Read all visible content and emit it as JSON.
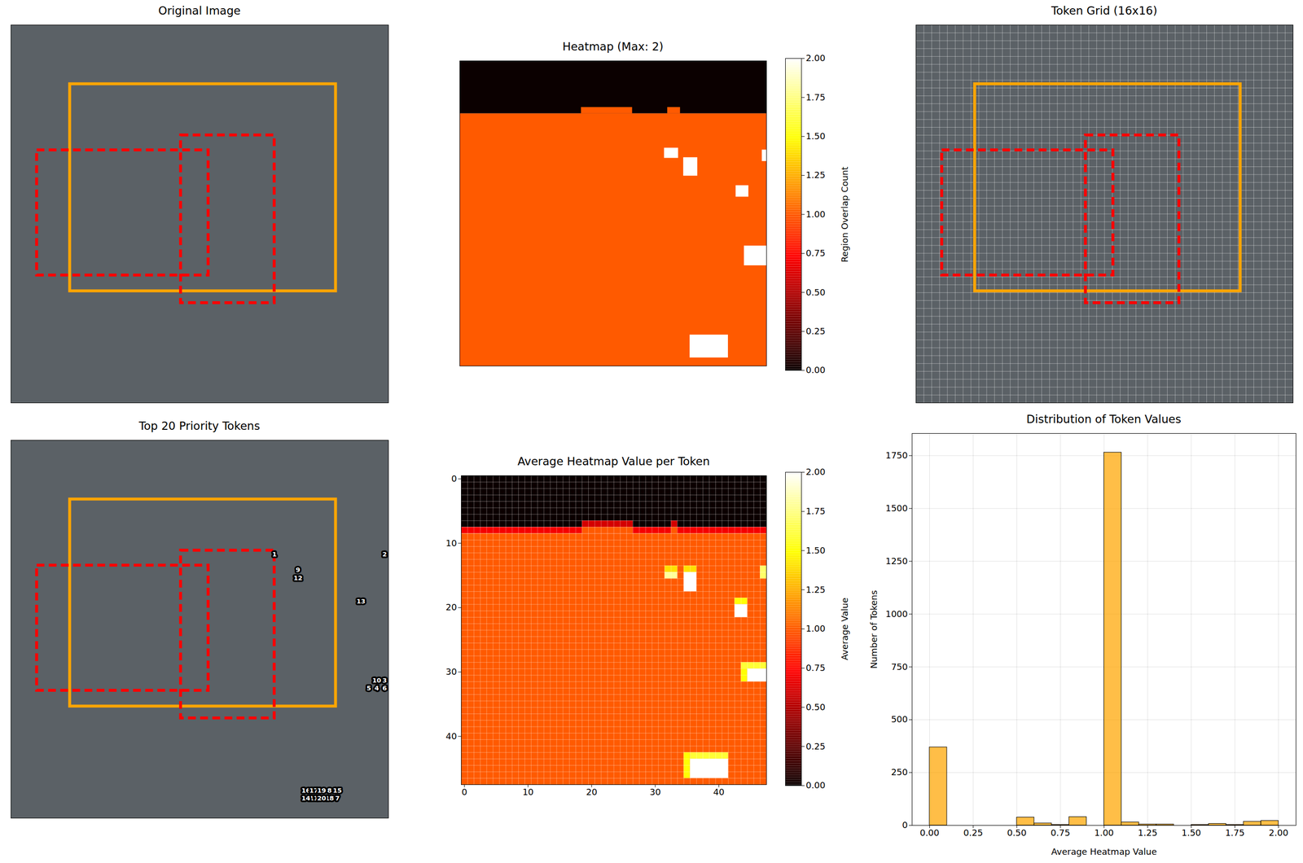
{
  "chart_data": [
    {
      "type": "image",
      "title": "Original Image",
      "tick_labels": false,
      "xlim": [
        0,
        48
      ],
      "ylim": [
        48,
        0
      ],
      "boxes": [
        {
          "x": [
            7.5,
            41.3
          ],
          "y": [
            7.5,
            33.8
          ],
          "color": "#ffa500",
          "line_style": "solid"
        },
        {
          "x": [
            3.3,
            25.1
          ],
          "y": [
            15.9,
            31.8
          ],
          "color": "#ff0000",
          "line_style": "dashed"
        },
        {
          "x": [
            21.6,
            33.5
          ],
          "y": [
            14.0,
            35.3
          ],
          "color": "#ff0000",
          "line_style": "dashed"
        }
      ]
    },
    {
      "type": "heatmap",
      "title": "Heatmap (Max: 2)",
      "tick_labels": false,
      "xlim": [
        0,
        48
      ],
      "ylim": [
        48,
        0
      ],
      "colorbar": {
        "label": "Region Overlap Count",
        "lim": [
          0,
          2
        ],
        "ticks": [
          {
            "value": 0,
            "label": "0.00"
          },
          {
            "value": 0.25,
            "label": "0.25"
          },
          {
            "value": 0.5,
            "label": "0.50"
          },
          {
            "value": 0.75,
            "label": "0.75"
          },
          {
            "value": 1,
            "label": "1.00"
          },
          {
            "value": 1.25,
            "label": "1.25"
          },
          {
            "value": 1.5,
            "label": "1.50"
          },
          {
            "value": 1.75,
            "label": "1.75"
          },
          {
            "value": 2,
            "label": "2.00"
          }
        ]
      },
      "cells": [
        {
          "x": [
            0,
            48
          ],
          "y": [
            0,
            8.3
          ],
          "value": 0
        },
        {
          "x": [
            0,
            48
          ],
          "y": [
            8.3,
            48
          ],
          "value": 1
        },
        {
          "x": [
            19,
            27
          ],
          "y": [
            7.3,
            8.3
          ],
          "value": 1
        },
        {
          "x": [
            32.5,
            34.5
          ],
          "y": [
            7.3,
            8.3
          ],
          "value": 1
        },
        {
          "x": [
            32,
            34.2
          ],
          "y": [
            13.7,
            15.3
          ],
          "value": 2
        },
        {
          "x": [
            35,
            37.2
          ],
          "y": [
            15.2,
            18.1
          ],
          "value": 2
        },
        {
          "x": [
            47.3,
            48
          ],
          "y": [
            14,
            15.8
          ],
          "value": 2
        },
        {
          "x": [
            43.2,
            45.2
          ],
          "y": [
            19.6,
            21.4
          ],
          "value": 2
        },
        {
          "x": [
            44.5,
            48
          ],
          "y": [
            29.1,
            32.2
          ],
          "value": 2
        },
        {
          "x": [
            36,
            42
          ],
          "y": [
            43.1,
            46.7
          ],
          "value": 2
        }
      ]
    },
    {
      "type": "image",
      "title": "Token Grid (16x16)",
      "tick_labels": false,
      "xlim": [
        0,
        48
      ],
      "ylim": [
        48,
        0
      ],
      "grid_cells": 48,
      "boxes": [
        {
          "x": [
            7.5,
            41.3
          ],
          "y": [
            7.5,
            33.8
          ],
          "color": "#ffa500",
          "line_style": "solid"
        },
        {
          "x": [
            3.3,
            25.1
          ],
          "y": [
            15.9,
            31.8
          ],
          "color": "#ff0000",
          "line_style": "dashed"
        },
        {
          "x": [
            21.6,
            33.5
          ],
          "y": [
            14.0,
            35.3
          ],
          "color": "#ff0000",
          "line_style": "dashed"
        }
      ]
    },
    {
      "type": "image",
      "title": "Top 20 Priority Tokens",
      "tick_labels": false,
      "xlim": [
        0,
        48
      ],
      "ylim": [
        48,
        0
      ],
      "boxes": [
        {
          "x": [
            7.5,
            41.3
          ],
          "y": [
            7.5,
            33.8
          ],
          "color": "#ffa500",
          "line_style": "solid"
        },
        {
          "x": [
            3.3,
            25.1
          ],
          "y": [
            15.9,
            31.8
          ],
          "color": "#ff0000",
          "line_style": "dashed"
        },
        {
          "x": [
            21.6,
            33.5
          ],
          "y": [
            14.0,
            35.3
          ],
          "color": "#ff0000",
          "line_style": "dashed"
        }
      ],
      "tokens": [
        {
          "rank": 1,
          "x": 33.5,
          "y": 14.5
        },
        {
          "rank": 2,
          "x": 47.5,
          "y": 14.5
        },
        {
          "rank": 3,
          "x": 47.5,
          "y": 30.5
        },
        {
          "rank": 4,
          "x": 46.5,
          "y": 31.5
        },
        {
          "rank": 5,
          "x": 45.5,
          "y": 31.5
        },
        {
          "rank": 6,
          "x": 47.5,
          "y": 31.5
        },
        {
          "rank": 7,
          "x": 41.5,
          "y": 45.5
        },
        {
          "rank": 8,
          "x": 40.5,
          "y": 44.5
        },
        {
          "rank": 9,
          "x": 36.5,
          "y": 16.5
        },
        {
          "rank": 10,
          "x": 46.5,
          "y": 30.5
        },
        {
          "rank": 11,
          "x": 38.5,
          "y": 45.5
        },
        {
          "rank": 12,
          "x": 36.5,
          "y": 17.5
        },
        {
          "rank": 13,
          "x": 44.5,
          "y": 20.5
        },
        {
          "rank": 14,
          "x": 37.5,
          "y": 45.5
        },
        {
          "rank": 15,
          "x": 41.5,
          "y": 44.5
        },
        {
          "rank": 16,
          "x": 37.5,
          "y": 44.5
        },
        {
          "rank": 17,
          "x": 38.5,
          "y": 44.5
        },
        {
          "rank": 18,
          "x": 40.5,
          "y": 45.5
        },
        {
          "rank": 19,
          "x": 39.5,
          "y": 44.5
        },
        {
          "rank": 20,
          "x": 39.5,
          "y": 45.5
        }
      ]
    },
    {
      "type": "heatmap",
      "title": "Average Heatmap Value per Token",
      "xlim": [
        -0.5,
        47.5
      ],
      "ylim": [
        47.5,
        -0.5
      ],
      "xticks": [
        0,
        10,
        20,
        30,
        40
      ],
      "yticks": [
        0,
        10,
        20,
        30,
        40
      ],
      "colorbar": {
        "label": "Average Value",
        "lim": [
          0,
          2
        ],
        "ticks": [
          {
            "value": 0,
            "label": "0.00"
          },
          {
            "value": 0.25,
            "label": "0.25"
          },
          {
            "value": 0.5,
            "label": "0.50"
          },
          {
            "value": 0.75,
            "label": "0.75"
          },
          {
            "value": 1,
            "label": "1.00"
          },
          {
            "value": 1.25,
            "label": "1.25"
          },
          {
            "value": 1.5,
            "label": "1.50"
          },
          {
            "value": 1.75,
            "label": "1.75"
          },
          {
            "value": 2,
            "label": "2.00"
          }
        ]
      },
      "cells": [
        {
          "x": [
            -0.5,
            47.5
          ],
          "y": [
            -0.5,
            7.5
          ],
          "value": 0
        },
        {
          "x": [
            -0.5,
            47.5
          ],
          "y": [
            7.5,
            8.5
          ],
          "value": 0.7
        },
        {
          "x": [
            -0.5,
            47.5
          ],
          "y": [
            8.5,
            47.5
          ],
          "value": 1
        },
        {
          "x": [
            18.5,
            26.5
          ],
          "y": [
            6.5,
            7.5
          ],
          "value": 0.6
        },
        {
          "x": [
            18.5,
            26.5
          ],
          "y": [
            7.5,
            8.5
          ],
          "value": 1
        },
        {
          "x": [
            32.5,
            33.5
          ],
          "y": [
            6.5,
            7.5
          ],
          "value": 0.6
        },
        {
          "x": [
            32.5,
            33.5
          ],
          "y": [
            7.5,
            8.5
          ],
          "value": 1
        },
        {
          "x": [
            31.5,
            33.5
          ],
          "y": [
            13.5,
            14.5
          ],
          "value": 1.4
        },
        {
          "x": [
            31.5,
            33.5
          ],
          "y": [
            14.5,
            15.5
          ],
          "value": 1.8
        },
        {
          "x": [
            34.5,
            36.5
          ],
          "y": [
            13.5,
            14.5
          ],
          "value": 1.4
        },
        {
          "x": [
            34.5,
            36.5
          ],
          "y": [
            14.5,
            17.5
          ],
          "value": 2
        },
        {
          "x": [
            46.5,
            47.5
          ],
          "y": [
            13.5,
            15.5
          ],
          "value": 1.7
        },
        {
          "x": [
            42.5,
            44.5
          ],
          "y": [
            18.5,
            19.5
          ],
          "value": 1.5
        },
        {
          "x": [
            42.5,
            44.5
          ],
          "y": [
            19.5,
            21.5
          ],
          "value": 2
        },
        {
          "x": [
            43.5,
            47.5
          ],
          "y": [
            28.5,
            29.5
          ],
          "value": 1.6
        },
        {
          "x": [
            43.5,
            44.5
          ],
          "y": [
            29.5,
            31.5
          ],
          "value": 1.5
        },
        {
          "x": [
            44.5,
            47.5
          ],
          "y": [
            29.5,
            31.5
          ],
          "value": 2
        },
        {
          "x": [
            34.5,
            35.5
          ],
          "y": [
            42.5,
            46.5
          ],
          "value": 1.5
        },
        {
          "x": [
            35.5,
            41.5
          ],
          "y": [
            42.5,
            43.5
          ],
          "value": 1.6
        },
        {
          "x": [
            35.5,
            41.5
          ],
          "y": [
            43.5,
            46.5
          ],
          "value": 2
        }
      ]
    },
    {
      "type": "histogram",
      "title": "Distribution of Token Values",
      "x_label": "Average Heatmap Value",
      "y_label": "Number of Tokens",
      "bins": [
        0,
        0.1,
        0.2,
        0.3,
        0.4,
        0.5,
        0.6,
        0.7,
        0.8,
        0.9,
        1.0,
        1.1,
        1.2,
        1.3,
        1.4,
        1.5,
        1.6,
        1.7,
        1.8,
        1.9,
        2.0
      ],
      "counts": [
        370,
        0,
        0,
        0,
        0,
        38,
        10,
        3,
        40,
        0,
        1765,
        15,
        5,
        5,
        0,
        3,
        8,
        3,
        18,
        22
      ],
      "color": "#ffa500",
      "xlim": [
        -0.1,
        2.1
      ],
      "ylim": [
        0,
        1855
      ],
      "xticks": [
        {
          "value": 0,
          "label": "0.00"
        },
        {
          "value": 0.25,
          "label": "0.25"
        },
        {
          "value": 0.5,
          "label": "0.50"
        },
        {
          "value": 0.75,
          "label": "0.75"
        },
        {
          "value": 1,
          "label": "1.00"
        },
        {
          "value": 1.25,
          "label": "1.25"
        },
        {
          "value": 1.5,
          "label": "1.50"
        },
        {
          "value": 1.75,
          "label": "1.75"
        },
        {
          "value": 2,
          "label": "2.00"
        }
      ],
      "yticks": [
        0,
        250,
        500,
        750,
        1000,
        1250,
        1500,
        1750
      ],
      "grid": true
    }
  ]
}
